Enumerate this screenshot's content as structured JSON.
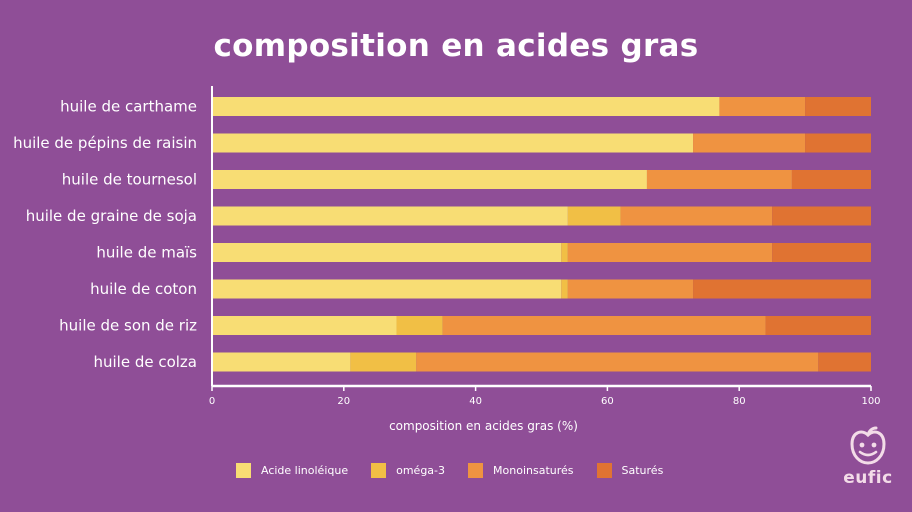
{
  "chart_data": {
    "type": "bar",
    "orientation": "horizontal",
    "stacked": true,
    "title": "composition en acides gras",
    "xlabel": "composition en acides gras (%)",
    "ylabel": "",
    "xlim": [
      0,
      100
    ],
    "xticks": [
      0,
      20,
      40,
      60,
      80,
      100
    ],
    "grid": false,
    "legend_position": "bottom",
    "categories": [
      "huile de carthame",
      "huile de pépins de raisin",
      "huile de tournesol",
      "huile de graine de soja",
      "huile de maïs",
      "huile de coton",
      "huile de son de riz",
      "huile de colza"
    ],
    "series": [
      {
        "name": "Acide linoléique",
        "color": "#f8dd74",
        "values": [
          77,
          73,
          66,
          54,
          53,
          53,
          28,
          21
        ]
      },
      {
        "name": "oméga-3",
        "color": "#f1bf45",
        "values": [
          0,
          0,
          0,
          8,
          1,
          1,
          7,
          10
        ]
      },
      {
        "name": "Monoinsaturés",
        "color": "#ef9341",
        "values": [
          13,
          17,
          22,
          23,
          31,
          19,
          49,
          61
        ]
      },
      {
        "name": "Saturés",
        "color": "#e07332",
        "values": [
          10,
          10,
          12,
          15,
          15,
          27,
          16,
          8
        ]
      }
    ]
  },
  "logo": {
    "text": "eufic",
    "icon": "apple-face-icon"
  }
}
